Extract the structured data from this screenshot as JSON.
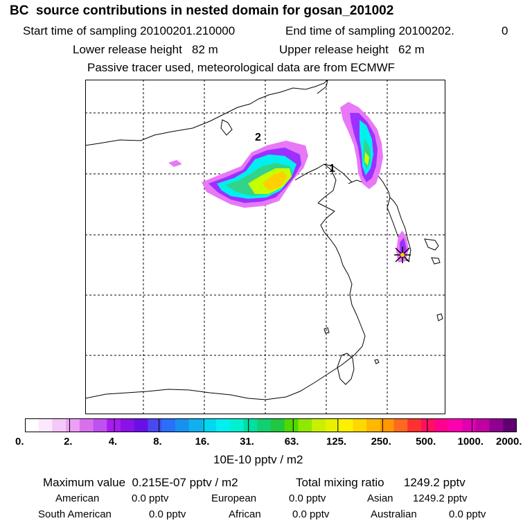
{
  "header": {
    "title": "BC  source contributions in nested domain for gosan_201002",
    "start_label": "Start time of sampling 20100201.210000",
    "end_label": "End time of sampling 20100202.",
    "end_suffix": "0",
    "lower_label": "Lower release height   82 m",
    "upper_label": "Upper release height   62 m",
    "tracer_note": "Passive tracer used, meteorological data are from ECMWF"
  },
  "map": {
    "markers": [
      "1",
      "2"
    ],
    "plume_colors": [
      "#e040ff",
      "#9b30ff",
      "#00f0f0",
      "#32d48a",
      "#c8ff00",
      "#ffd000"
    ]
  },
  "scale": {
    "colors": [
      "#ffffff",
      "#fce8fc",
      "#f4c8f8",
      "#eca0f4",
      "#d870ee",
      "#c050f0",
      "#a81cf0",
      "#8a12e8",
      "#6a0fe8",
      "#4848f0",
      "#2870f8",
      "#1890f0",
      "#10b0f0",
      "#00d8f0",
      "#00f0f0",
      "#00f0d0",
      "#00e0a0",
      "#10d070",
      "#20c840",
      "#50d800",
      "#90e800",
      "#c8f000",
      "#e8f000",
      "#fff000",
      "#ffd800",
      "#ffb800",
      "#ff9800",
      "#ff6820",
      "#ff3030",
      "#ff1060",
      "#ff0090",
      "#ff00b0",
      "#e000b0",
      "#c000a0",
      "#900090",
      "#600070"
    ],
    "ticks": [
      "0.",
      "2.",
      "4.",
      "8.",
      "16.",
      "31.",
      "63.",
      "125.",
      "250.",
      "500.",
      "1000.",
      "2000."
    ],
    "units": "10E-10 pptv / m2"
  },
  "stats": {
    "max_label": "Maximum value  0.215E-07 pptv / m2",
    "total_label": "Total mixing ratio      1249.2 pptv",
    "regions": [
      {
        "name": "American",
        "value": "0.0 pptv"
      },
      {
        "name": "European",
        "value": "0.0 pptv"
      },
      {
        "name": "Asian",
        "value": "1249.2 pptv"
      },
      {
        "name": "South American",
        "value": "0.0 pptv"
      },
      {
        "name": "African",
        "value": "0.0 pptv"
      },
      {
        "name": "Australian",
        "value": "0.0 pptv"
      }
    ]
  }
}
